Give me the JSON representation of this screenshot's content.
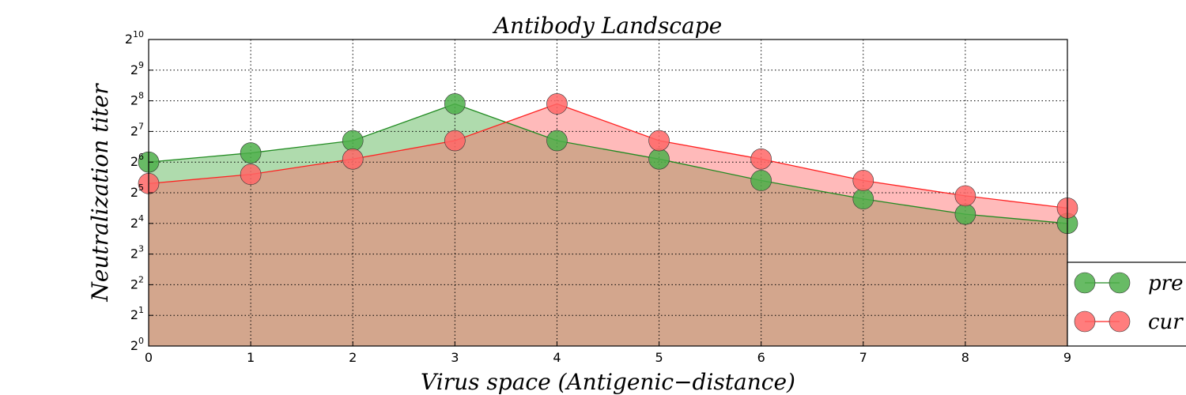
{
  "chart_data": {
    "type": "line",
    "title": "Antibody Landscape",
    "xlabel": "Virus space (Antigenic−distance)",
    "ylabel": "Neutralization  titer",
    "x": [
      0,
      1,
      2,
      3,
      4,
      5,
      6,
      7,
      8,
      9
    ],
    "xlim": [
      0,
      9
    ],
    "ylim_log2": [
      0,
      10
    ],
    "yscale": "log2",
    "y_tick_base": "2",
    "y_tick_exponents": [
      "0",
      "1",
      "2",
      "3",
      "4",
      "5",
      "6",
      "7",
      "8",
      "9",
      "10"
    ],
    "x_tick_labels": [
      "0",
      "1",
      "2",
      "3",
      "4",
      "5",
      "6",
      "7",
      "8",
      "9"
    ],
    "grid": true,
    "legend_position": "lower-right-outside",
    "series": [
      {
        "name": "pre",
        "log2_values": [
          6.0,
          6.3,
          6.7,
          7.9,
          6.7,
          6.1,
          5.4,
          4.8,
          4.3,
          4.0
        ],
        "color": "#228B22",
        "fill": "#4DAF4A"
      },
      {
        "name": "cur",
        "log2_values": [
          5.3,
          5.6,
          6.1,
          6.7,
          7.9,
          6.7,
          6.1,
          5.4,
          4.9,
          4.5
        ],
        "color": "#FF2222",
        "fill": "#FF6666"
      }
    ]
  }
}
